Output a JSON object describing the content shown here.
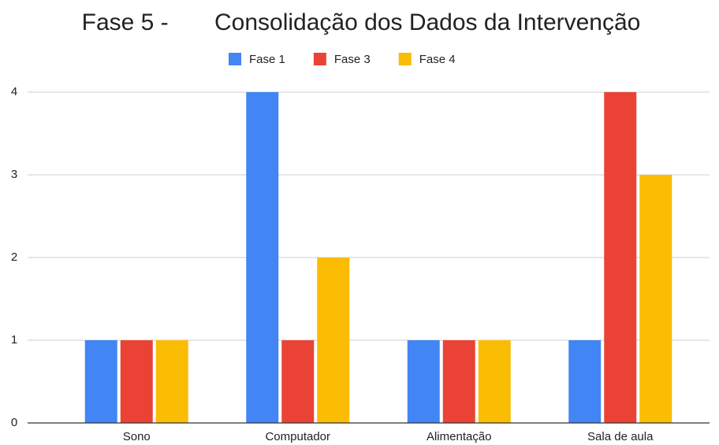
{
  "chart_data": {
    "type": "bar",
    "title": "Fase 5 -       Consolidação dos Dados da Intervenção",
    "categories": [
      "Sono",
      "Computador",
      "Alimentação",
      "Sala de aula"
    ],
    "series": [
      {
        "name": "Fase 1",
        "color": "#4285f4",
        "values": [
          1,
          4,
          1,
          1
        ]
      },
      {
        "name": "Fase 3",
        "color": "#ea4335",
        "values": [
          1,
          1,
          1,
          4
        ]
      },
      {
        "name": "Fase 4",
        "color": "#fbbc04",
        "values": [
          1,
          2,
          1,
          3
        ]
      }
    ],
    "ylim": [
      0,
      4
    ],
    "yticks": [
      0,
      1,
      2,
      3,
      4
    ],
    "grid": true,
    "legend": "top"
  }
}
